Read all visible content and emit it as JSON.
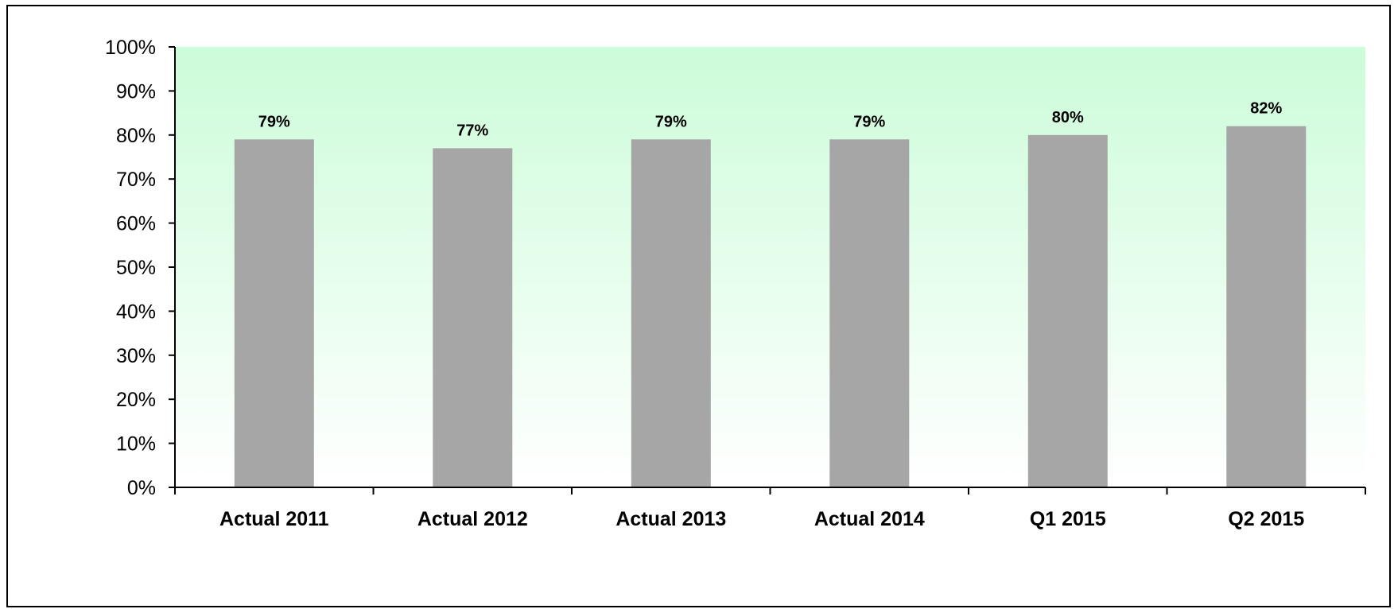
{
  "chart_data": {
    "type": "bar",
    "categories": [
      "Actual 2011",
      "Actual 2012",
      "Actual 2013",
      "Actual 2014",
      "Q1 2015",
      "Q2 2015"
    ],
    "values": [
      79,
      77,
      79,
      79,
      80,
      82
    ],
    "data_labels": [
      "79%",
      "77%",
      "79%",
      "79%",
      "80%",
      "82%"
    ],
    "title": "",
    "xlabel": "",
    "ylabel": "",
    "ylim": [
      0,
      100
    ],
    "y_ticks": [
      0,
      10,
      20,
      30,
      40,
      50,
      60,
      70,
      80,
      90,
      100
    ],
    "y_tick_labels": [
      "0%",
      "10%",
      "20%",
      "30%",
      "40%",
      "50%",
      "60%",
      "70%",
      "80%",
      "90%",
      "100%"
    ],
    "grid": false,
    "legend": "none",
    "colors": {
      "bar": "#a6a6a6",
      "plot_background_top": "#ccfcd9",
      "plot_background_bottom": "#ffffff",
      "axis": "#000000"
    }
  }
}
